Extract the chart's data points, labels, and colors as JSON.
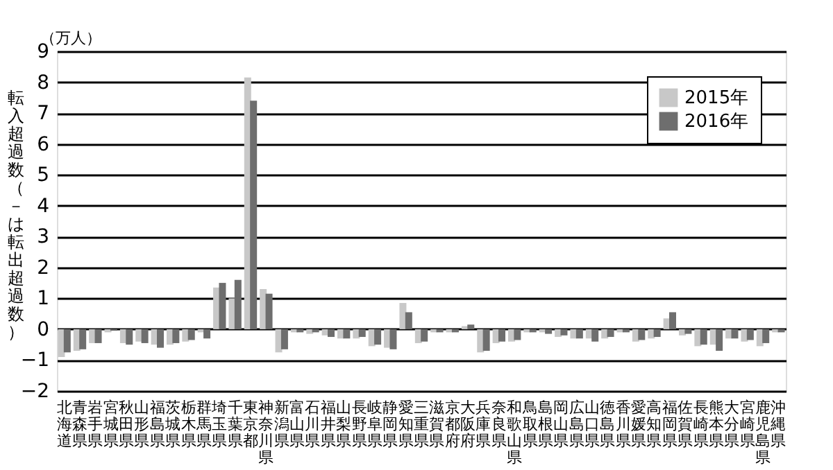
{
  "chart_data": {
    "type": "bar",
    "ylabel": "転入超過数（－は転出超過数）",
    "annotations": [
      "（万人）"
    ],
    "categories": [
      "北海道",
      "青森県",
      "岩手県",
      "宮城県",
      "秋田県",
      "山形県",
      "福島県",
      "茨城県",
      "栃木県",
      "群馬県",
      "埼玉県",
      "千葉県",
      "東京都",
      "神奈川県",
      "新潟県",
      "富山県",
      "石川県",
      "福井県",
      "山梨県",
      "長野県",
      "岐阜県",
      "静岡県",
      "愛知県",
      "三重県",
      "滋賀県",
      "京都府",
      "大阪府",
      "兵庫県",
      "奈良県",
      "和歌山県",
      "鳥取県",
      "島根県",
      "岡山県",
      "広島県",
      "山口県",
      "徳島県",
      "香川県",
      "愛媛県",
      "高知県",
      "福岡県",
      "佐賀県",
      "長崎県",
      "熊本県",
      "大分県",
      "宮崎県",
      "鹿児島県",
      "沖縄県"
    ],
    "series": [
      {
        "name": "2015年",
        "color": "#c8c8c8",
        "values": [
          -0.9,
          -0.7,
          -0.45,
          -0.1,
          -0.45,
          -0.4,
          -0.5,
          -0.5,
          -0.4,
          -0.1,
          1.35,
          1.0,
          8.15,
          1.3,
          -0.75,
          -0.1,
          -0.15,
          -0.2,
          -0.3,
          -0.3,
          -0.55,
          -0.6,
          0.85,
          -0.45,
          -0.1,
          -0.1,
          0.1,
          -0.75,
          -0.45,
          -0.4,
          -0.1,
          -0.1,
          -0.25,
          -0.3,
          -0.3,
          -0.3,
          -0.1,
          -0.4,
          -0.3,
          0.35,
          -0.2,
          -0.55,
          -0.5,
          -0.3,
          -0.4,
          -0.55,
          -0.1
        ]
      },
      {
        "name": "2016年",
        "color": "#6e6e6e",
        "values": [
          -0.75,
          -0.65,
          -0.45,
          -0.05,
          -0.5,
          -0.45,
          -0.6,
          -0.45,
          -0.35,
          -0.3,
          1.5,
          1.6,
          7.4,
          1.15,
          -0.65,
          -0.1,
          -0.1,
          -0.25,
          -0.3,
          -0.25,
          -0.5,
          -0.65,
          0.55,
          -0.4,
          -0.1,
          -0.1,
          0.15,
          -0.7,
          -0.4,
          -0.35,
          -0.1,
          -0.15,
          -0.2,
          -0.3,
          -0.4,
          -0.25,
          -0.1,
          -0.35,
          -0.25,
          0.55,
          -0.15,
          -0.5,
          -0.7,
          -0.3,
          -0.35,
          -0.45,
          -0.1
        ]
      }
    ],
    "ylim": [
      -2,
      9
    ],
    "yticks": [
      -2,
      -1,
      0,
      1,
      2,
      3,
      4,
      5,
      6,
      7,
      8,
      9
    ],
    "grid": "y",
    "legend": "top right"
  }
}
